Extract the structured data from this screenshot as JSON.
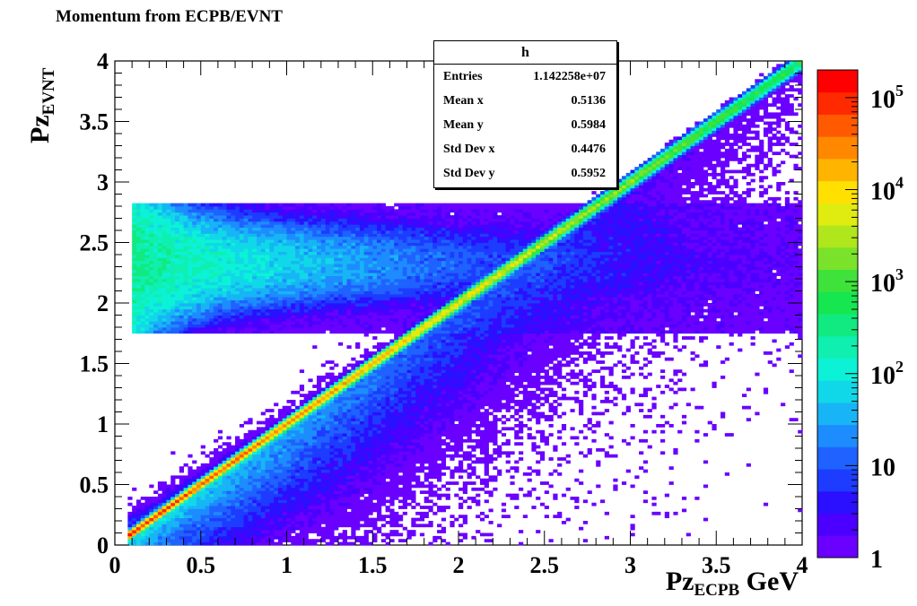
{
  "chart_data": {
    "type": "heatmap",
    "title": "Momentum from ECPB/EVNT",
    "xlabel": {
      "main": "Pz",
      "sub": "ECPB",
      "unit": "GeV"
    },
    "ylabel": {
      "main": "Pz",
      "sub": "EVNT"
    },
    "xlim": [
      0,
      4
    ],
    "ylim": [
      0,
      4
    ],
    "x_ticks": [
      "0",
      "0.5",
      "1",
      "1.5",
      "2",
      "2.5",
      "3",
      "3.5",
      "4"
    ],
    "y_ticks": [
      "0",
      "0.5",
      "1",
      "1.5",
      "2",
      "2.5",
      "3",
      "3.5",
      "4"
    ],
    "z_scale": "log",
    "zlim": [
      1,
      200000
    ],
    "colorbar_ticks": [
      {
        "base": "1",
        "exp": "",
        "value": 1
      },
      {
        "base": "10",
        "exp": "",
        "value": 10
      },
      {
        "base": "10",
        "exp": "2",
        "value": 100
      },
      {
        "base": "10",
        "exp": "3",
        "value": 1000
      },
      {
        "base": "10",
        "exp": "4",
        "value": 10000
      },
      {
        "base": "10",
        "exp": "5",
        "value": 100000
      }
    ],
    "palette": [
      "#6a00ff",
      "#4b00ff",
      "#2a10ff",
      "#1d3cff",
      "#1f62ff",
      "#1d8cff",
      "#17b5f5",
      "#11d8e8",
      "#0cf2d6",
      "#0ff0b0",
      "#10ea80",
      "#16e650",
      "#3ee23a",
      "#7ae22a",
      "#b0e61c",
      "#e0ec10",
      "#ffe000",
      "#ffb400",
      "#ff8800",
      "#ff5a00",
      "#ff2a00",
      "#ff0000"
    ],
    "regions": [
      {
        "name": "diagonal",
        "x_range": [
          0.08,
          4.0
        ],
        "relation": "y = x",
        "peak_count": 100000
      },
      {
        "name": "band",
        "x_range": [
          0.1,
          4.0
        ],
        "y_range": [
          1.75,
          2.82
        ],
        "peak_count": 300
      },
      {
        "name": "scatter",
        "x_range": [
          0.1,
          4.0
        ],
        "y_range": [
          0.0,
          4.0
        ],
        "peak_count": 10
      }
    ]
  },
  "stats": {
    "name": "h",
    "rows": [
      {
        "label": "Entries",
        "value": "1.142258e+07"
      },
      {
        "label": "Mean x",
        "value": "0.5136"
      },
      {
        "label": "Mean y",
        "value": "0.5984"
      },
      {
        "label": "Std Dev x",
        "value": "0.4476"
      },
      {
        "label": "Std Dev y",
        "value": "0.5952"
      }
    ]
  }
}
